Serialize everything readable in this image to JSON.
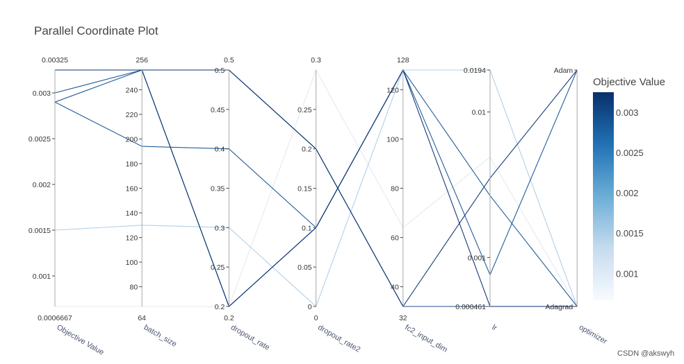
{
  "chart_data": {
    "type": "parallel_coordinates",
    "title": "Parallel Coordinate Plot",
    "axes": [
      {
        "name": "Objective Value",
        "range": [
          0.0006667,
          0.00325
        ],
        "range_labels": [
          "0.0006667",
          "0.00325"
        ],
        "ticks": [
          0.001,
          0.0015,
          0.002,
          0.0025,
          0.003
        ],
        "tick_labels": [
          "0.001",
          "0.0015",
          "0.002",
          "0.0025",
          "0.003"
        ]
      },
      {
        "name": "batch_size",
        "range": [
          64,
          256
        ],
        "range_labels": [
          "64",
          "256"
        ],
        "ticks": [
          80,
          100,
          120,
          140,
          160,
          180,
          200,
          220,
          240
        ],
        "tick_labels": [
          "80",
          "100",
          "120",
          "140",
          "160",
          "180",
          "200",
          "220",
          "240"
        ]
      },
      {
        "name": "dropout_rate",
        "range": [
          0.2,
          0.5
        ],
        "range_labels": [
          "0.2",
          "0.5"
        ],
        "ticks": [
          0.2,
          0.25,
          0.3,
          0.35,
          0.4,
          0.45,
          0.5
        ],
        "tick_labels": [
          "0.2",
          "0.25",
          "0.3",
          "0.35",
          "0.4",
          "0.45",
          "0.5"
        ]
      },
      {
        "name": "dropout_rate2",
        "range": [
          0,
          0.3
        ],
        "range_labels": [
          "0",
          "0.3"
        ],
        "ticks": [
          0,
          0.05,
          0.1,
          0.15,
          0.2,
          0.25
        ],
        "tick_labels": [
          "0",
          "0.05",
          "0.1",
          "0.15",
          "0.2",
          "0.25"
        ]
      },
      {
        "name": "fc2_input_dim",
        "range": [
          32,
          128
        ],
        "range_labels": [
          "32",
          "128"
        ],
        "ticks": [
          40,
          60,
          80,
          100,
          120
        ],
        "tick_labels": [
          "40",
          "60",
          "80",
          "100",
          "120"
        ]
      },
      {
        "name": "lr",
        "scale": "log",
        "range": [
          0.000461,
          0.0194
        ],
        "range_labels": [],
        "ticks": [
          0.000461,
          0.001,
          0.01,
          0.0194
        ],
        "tick_labels": [
          "0.000461",
          "0.001",
          "0.01",
          "0.0194"
        ]
      },
      {
        "name": "optimizer",
        "type": "categorical",
        "categories": [
          "Adagrad",
          "Adam"
        ],
        "range_labels": [],
        "ticks": [
          0,
          1
        ],
        "tick_labels": [
          "Adagrad",
          "Adam"
        ]
      }
    ],
    "series": [
      {
        "values": [
          0.003,
          256,
          0.5,
          0.2,
          32,
          0.000461,
          "Adagrad"
        ]
      },
      {
        "values": [
          0.0029,
          256,
          0.2,
          0.1,
          128,
          0.00076,
          "Adam"
        ]
      },
      {
        "values": [
          0.0029,
          194,
          0.4,
          0.1,
          128,
          0.00266,
          "Adagrad"
        ]
      },
      {
        "values": [
          0.00325,
          256,
          0.5,
          0.2,
          32,
          0.00351,
          "Adam"
        ]
      },
      {
        "values": [
          0.00325,
          256,
          0.2,
          0.1,
          128,
          0.000461,
          "Adagrad"
        ]
      },
      {
        "values": [
          0.0015,
          130,
          0.3,
          0.0,
          128,
          0.0194,
          "Adagrad"
        ]
      },
      {
        "values": [
          0.0006667,
          64,
          0.2,
          0.3,
          64,
          0.0049,
          "Adagrad"
        ]
      }
    ],
    "colorscale": {
      "title": "Objective Value",
      "colors": [
        "#f7fbff",
        "#c6dbef",
        "#6baed6",
        "#2171b5",
        "#08306b"
      ],
      "ticks": [
        0.001,
        0.0015,
        0.002,
        0.0025,
        0.003
      ],
      "tick_labels": [
        "0.001",
        "0.0015",
        "0.002",
        "0.0025",
        "0.003"
      ]
    }
  },
  "watermark": "CSDN @akswyh"
}
